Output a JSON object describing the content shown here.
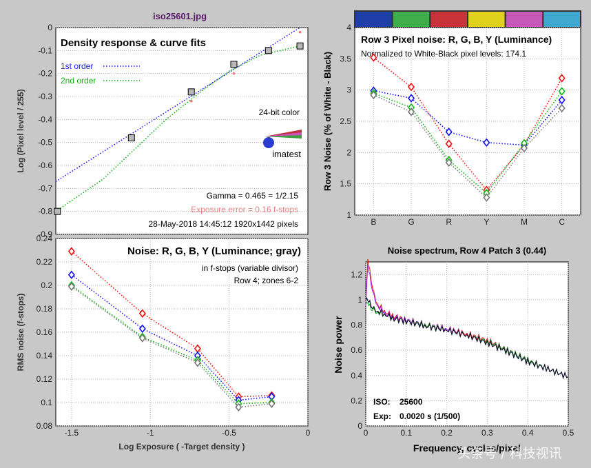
{
  "file_title": "iso25601.jpg",
  "watermark": "头条号 / 科技视讯",
  "color_bar": [
    "#1f3fa8",
    "#3fae4a",
    "#c8333a",
    "#e0d21c",
    "#c659b8",
    "#3fa8d0"
  ],
  "chart_data": [
    {
      "id": "density",
      "type": "line",
      "title": "Density response & curve fits",
      "xlabel": "Log Exposure ( -Target density )",
      "ylabel": "Log (Pixel level / 255)",
      "xlim": [
        -1.6,
        0
      ],
      "ylim": [
        -0.9,
        0
      ],
      "xticks": [
        "-1.5",
        "-1",
        "-0.5",
        "0"
      ],
      "yticks": [
        "0",
        "-0.1",
        "-0.2",
        "-0.3",
        "-0.4",
        "-0.5",
        "-0.6",
        "-0.7",
        "-0.8",
        "-0.9"
      ],
      "grid": true,
      "series": [
        {
          "name": "1st order",
          "color": "#1a1aff",
          "dash": true,
          "x": [
            -1.6,
            -0.05
          ],
          "y": [
            -0.67,
            0.0
          ]
        },
        {
          "name": "2nd order",
          "color": "#13b013",
          "dash": true,
          "x": [
            -1.6,
            -1.3,
            -1.1,
            -0.9,
            -0.7,
            -0.5,
            -0.3,
            -0.05
          ],
          "y": [
            -0.8,
            -0.66,
            -0.53,
            -0.4,
            -0.29,
            -0.19,
            -0.12,
            -0.08
          ]
        }
      ],
      "measured": {
        "x": [
          -1.59,
          -1.12,
          -0.74,
          -0.47,
          -0.25,
          -0.05
        ],
        "y": [
          -0.8,
          -0.48,
          -0.28,
          -0.16,
          -0.1,
          -0.08
        ]
      },
      "exposure_points": {
        "color": "#f07070",
        "x": [
          -0.74,
          -0.47,
          -0.05
        ],
        "y": [
          -0.32,
          -0.2,
          -0.02
        ]
      },
      "legend": [
        {
          "label": "1st order",
          "color": "#1a1aff"
        },
        {
          "label": "2nd order",
          "color": "#13b013"
        }
      ],
      "annotations": {
        "color_mode": "24-bit color",
        "logo": "imatest",
        "gamma": "Gamma = 0.465 = 1/2.15",
        "exposure_error": "Exposure error = 0.16 f-stops",
        "date_pixels": "28-May-2018 14:45:12   1920x1442 pixels"
      }
    },
    {
      "id": "row3",
      "type": "line",
      "title": "Row 3 Pixel noise: R, G, B, Y (Luminance)",
      "subtitle": "Normalized to White-Black pixel levels: 174.1",
      "ylabel": "Row 3 Noise (% of White - Black)",
      "categories": [
        "B",
        "G",
        "R",
        "Y",
        "M",
        "C"
      ],
      "ylim": [
        1,
        4
      ],
      "yticks": [
        "1",
        "1.5",
        "2",
        "2.5",
        "3",
        "3.5",
        "4"
      ],
      "grid": true,
      "series": [
        {
          "color": "#ee1111",
          "values": [
            3.52,
            3.05,
            2.14,
            1.4,
            2.12,
            3.19
          ]
        },
        {
          "color": "#1111ee",
          "values": [
            2.99,
            2.87,
            2.33,
            2.16,
            2.12,
            2.84
          ]
        },
        {
          "color": "#11bb11",
          "values": [
            2.95,
            2.72,
            1.88,
            1.35,
            2.15,
            2.98
          ]
        },
        {
          "color": "#777777",
          "values": [
            2.92,
            2.65,
            1.84,
            1.28,
            2.07,
            2.71
          ]
        }
      ]
    },
    {
      "id": "noise_fstops",
      "type": "line",
      "title": "Noise: R, G, B, Y (Luminance; gray)",
      "subtitle": "in f-stops (variable divisor)",
      "subtitle2": "Row 4; zones 6-2",
      "xlabel": "Log Exposure ( -Target density )",
      "ylabel": "RMS noise (f-stops)",
      "xlim": [
        -1.6,
        0
      ],
      "ylim": [
        0.08,
        0.24
      ],
      "xticks": [
        "-1.5",
        "-1",
        "-0.5",
        "0"
      ],
      "yticks": [
        "0.24",
        "0.22",
        "0.2",
        "0.18",
        "0.16",
        "0.14",
        "0.12",
        "0.1",
        "0.08"
      ],
      "grid": true,
      "x": [
        -1.5,
        -1.05,
        -0.7,
        -0.44,
        -0.23
      ],
      "series": [
        {
          "color": "#ee1111",
          "values": [
            0.229,
            0.176,
            0.146,
            0.105,
            0.106
          ]
        },
        {
          "color": "#1111ee",
          "values": [
            0.209,
            0.163,
            0.14,
            0.102,
            0.105
          ]
        },
        {
          "color": "#11bb11",
          "values": [
            0.2,
            0.156,
            0.136,
            0.099,
            0.1
          ]
        },
        {
          "color": "#777777",
          "values": [
            0.199,
            0.155,
            0.134,
            0.096,
            0.099
          ]
        }
      ]
    },
    {
      "id": "spectrum",
      "type": "line",
      "title": "Noise spectrum, Row 4 Patch 3 (0.44)",
      "xlabel": "Frequency, cycles/pixel",
      "ylabel": "Noise power",
      "xlim": [
        0,
        0.5
      ],
      "ylim": [
        0,
        1.3
      ],
      "xticks": [
        "0",
        "0.1",
        "0.2",
        "0.3",
        "0.4",
        "0.5"
      ],
      "yticks": [
        "0",
        "0.2",
        "0.4",
        "0.6",
        "0.8",
        "1",
        "1.2"
      ],
      "grid": true,
      "iso_label": "ISO:",
      "iso_value": "25600",
      "exp_label": "Exp:",
      "exp_value": "0.0020 s  (1/500)",
      "series": [
        {
          "color": "#ee1111",
          "x": [
            0,
            0.005,
            0.01,
            0.02,
            0.03,
            0.05,
            0.07,
            0.1,
            0.15,
            0.2,
            0.25,
            0.3,
            0.35,
            0.4,
            0.45,
            0.5
          ],
          "y": [
            0.95,
            1.33,
            1.22,
            1.05,
            0.96,
            0.9,
            0.87,
            0.84,
            0.8,
            0.77,
            0.73,
            0.68,
            0.6,
            0.52,
            0.45,
            0.39
          ]
        },
        {
          "color": "#a020f0",
          "x": [
            0,
            0.005,
            0.01,
            0.02,
            0.03,
            0.05,
            0.07,
            0.1,
            0.15,
            0.2,
            0.25,
            0.3,
            0.35,
            0.4,
            0.45,
            0.5
          ],
          "y": [
            0.95,
            1.28,
            1.18,
            1.03,
            0.95,
            0.89,
            0.86,
            0.84,
            0.8,
            0.77,
            0.72,
            0.67,
            0.6,
            0.52,
            0.45,
            0.39
          ]
        },
        {
          "color": "#11aa11",
          "x": [
            0,
            0.005,
            0.01,
            0.02,
            0.03,
            0.05,
            0.07,
            0.1,
            0.15,
            0.2,
            0.25,
            0.3,
            0.35,
            0.4,
            0.45,
            0.5
          ],
          "y": [
            0.96,
            0.98,
            0.94,
            0.92,
            0.9,
            0.88,
            0.85,
            0.83,
            0.8,
            0.76,
            0.72,
            0.67,
            0.6,
            0.52,
            0.45,
            0.39
          ]
        },
        {
          "color": "#1111ee",
          "x": [
            0,
            0.005,
            0.01,
            0.02,
            0.03,
            0.05,
            0.07,
            0.1,
            0.15,
            0.2,
            0.25,
            0.3,
            0.35,
            0.4,
            0.45,
            0.5
          ],
          "y": [
            1.0,
            1.0,
            0.97,
            0.93,
            0.91,
            0.88,
            0.85,
            0.83,
            0.79,
            0.76,
            0.72,
            0.66,
            0.59,
            0.51,
            0.45,
            0.39
          ]
        },
        {
          "color": "#111111",
          "x": [
            0,
            0.005,
            0.01,
            0.02,
            0.03,
            0.05,
            0.07,
            0.1,
            0.15,
            0.2,
            0.25,
            0.3,
            0.35,
            0.4,
            0.45,
            0.5
          ],
          "y": [
            1.01,
            1.0,
            0.97,
            0.93,
            0.91,
            0.88,
            0.85,
            0.83,
            0.79,
            0.76,
            0.72,
            0.66,
            0.59,
            0.51,
            0.45,
            0.39
          ]
        }
      ]
    }
  ]
}
